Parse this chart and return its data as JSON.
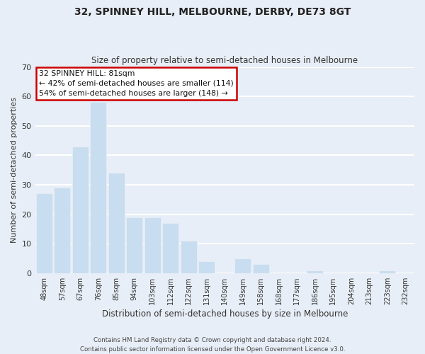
{
  "title": "32, SPINNEY HILL, MELBOURNE, DERBY, DE73 8GT",
  "subtitle": "Size of property relative to semi-detached houses in Melbourne",
  "xlabel": "Distribution of semi-detached houses by size in Melbourne",
  "ylabel": "Number of semi-detached properties",
  "bar_color": "#c8ddef",
  "categories": [
    "48sqm",
    "57sqm",
    "67sqm",
    "76sqm",
    "85sqm",
    "94sqm",
    "103sqm",
    "112sqm",
    "122sqm",
    "131sqm",
    "140sqm",
    "149sqm",
    "158sqm",
    "168sqm",
    "177sqm",
    "186sqm",
    "195sqm",
    "204sqm",
    "213sqm",
    "223sqm",
    "232sqm"
  ],
  "values": [
    27,
    29,
    43,
    58,
    34,
    19,
    19,
    17,
    11,
    4,
    0,
    5,
    3,
    0,
    0,
    1,
    0,
    0,
    0,
    1,
    0
  ],
  "ylim": [
    0,
    70
  ],
  "yticks": [
    0,
    10,
    20,
    30,
    40,
    50,
    60,
    70
  ],
  "annotation_title": "32 SPINNEY HILL: 81sqm",
  "annotation_line1": "← 42% of semi-detached houses are smaller (114)",
  "annotation_line2": "54% of semi-detached houses are larger (148) →",
  "footer1": "Contains HM Land Registry data © Crown copyright and database right 2024.",
  "footer2": "Contains public sector information licensed under the Open Government Licence v3.0.",
  "background_color": "#e8eef7",
  "plot_bg_color": "#e8eef7",
  "grid_color": "#ffffff",
  "annotation_box_color": "#ffffff",
  "annotation_box_edge": "#cc0000",
  "title_color": "#222222",
  "subtitle_color": "#333333",
  "text_color": "#333333",
  "footer_color": "#444444"
}
